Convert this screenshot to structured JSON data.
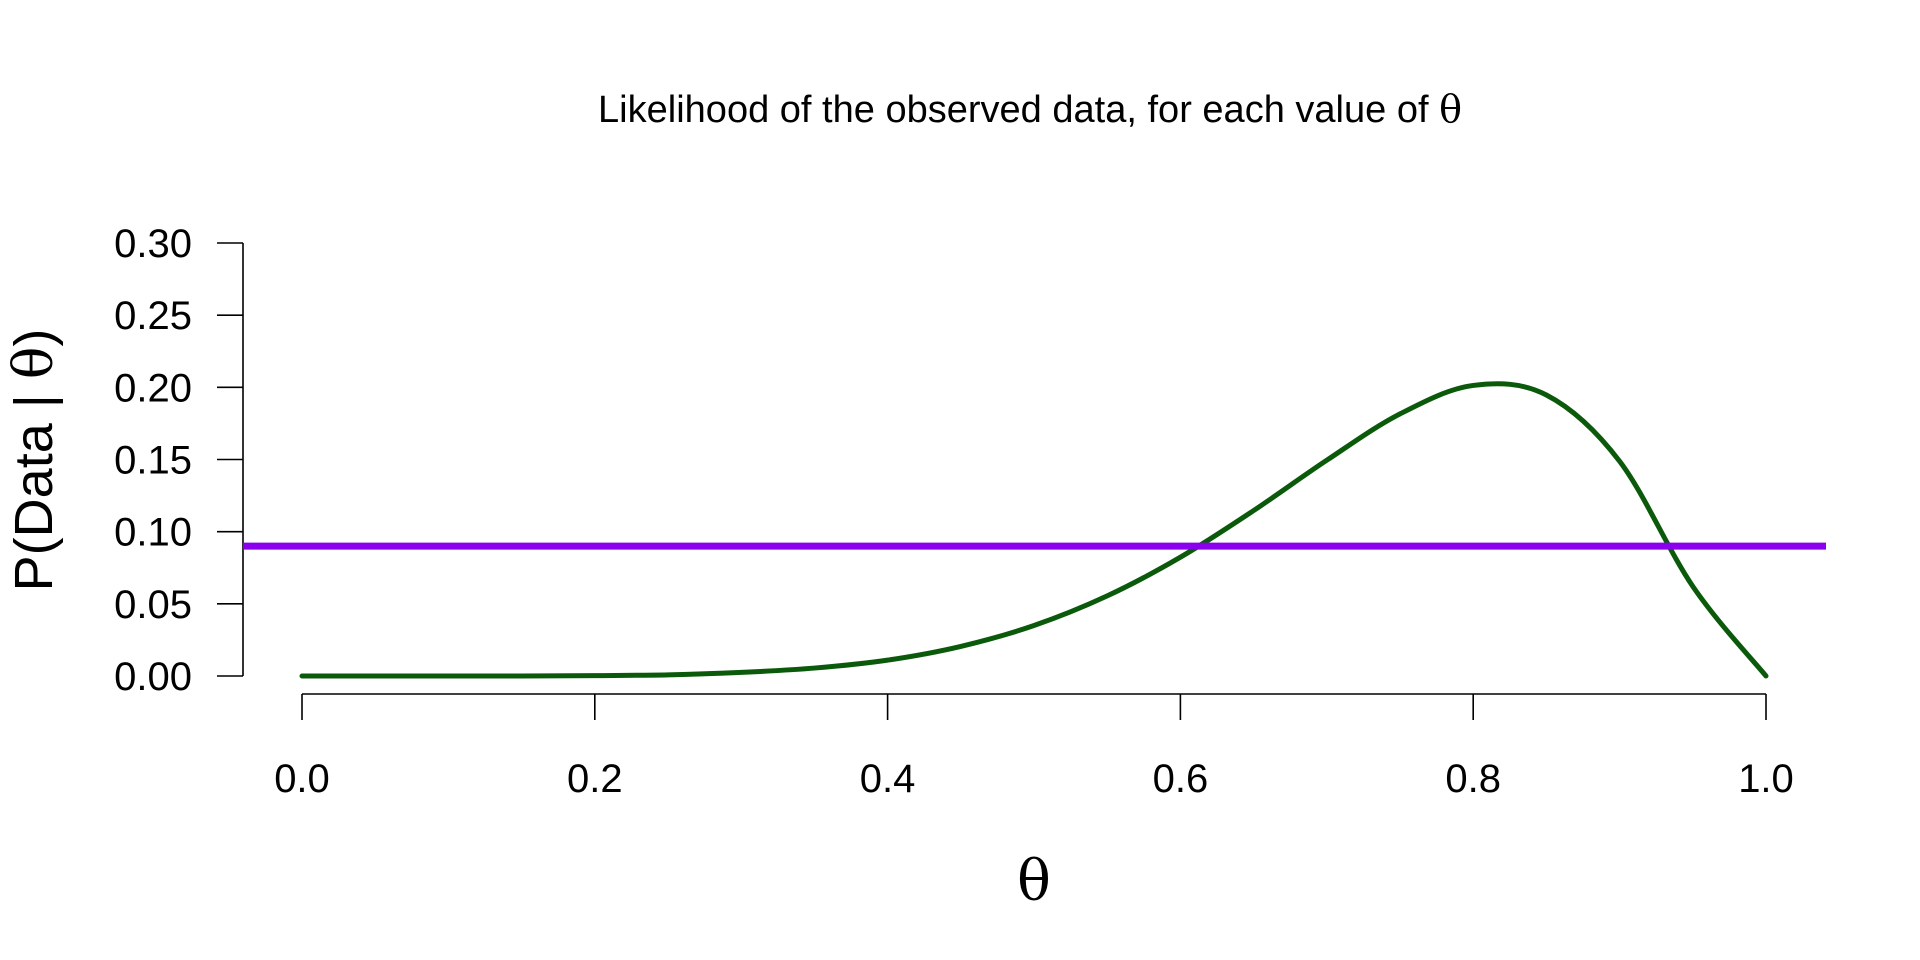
{
  "chart_data": {
    "type": "line",
    "title": "Likelihood of the observed data, for each value of θ",
    "xlabel": "θ",
    "ylabel": "P(Data | θ)",
    "xlim": [
      0,
      1
    ],
    "ylim": [
      0,
      0.3
    ],
    "x_ticks": [
      "0.0",
      "0.2",
      "0.4",
      "0.6",
      "0.8",
      "1.0"
    ],
    "y_ticks": [
      "0.00",
      "0.05",
      "0.10",
      "0.15",
      "0.20",
      "0.25",
      "0.30"
    ],
    "grid": false,
    "series": [
      {
        "color": "#0b5a0b",
        "x": [
          0.0,
          0.05,
          0.1,
          0.15,
          0.2,
          0.25,
          0.3,
          0.35,
          0.4,
          0.45,
          0.5,
          0.55,
          0.6,
          0.65,
          0.7,
          0.75,
          0.8,
          0.85,
          0.9,
          0.95,
          1.0
        ],
        "y": [
          0.0,
          0.0,
          0.0,
          0.0,
          0.0003,
          0.0008,
          0.0025,
          0.0055,
          0.011,
          0.0205,
          0.035,
          0.0555,
          0.0823,
          0.1146,
          0.1495,
          0.1816,
          0.2013,
          0.1947,
          0.1488,
          0.0621,
          0.0
        ]
      }
    ],
    "reference_line": {
      "type": "horizontal",
      "y": 0.09,
      "color": "#8a00ee"
    }
  }
}
